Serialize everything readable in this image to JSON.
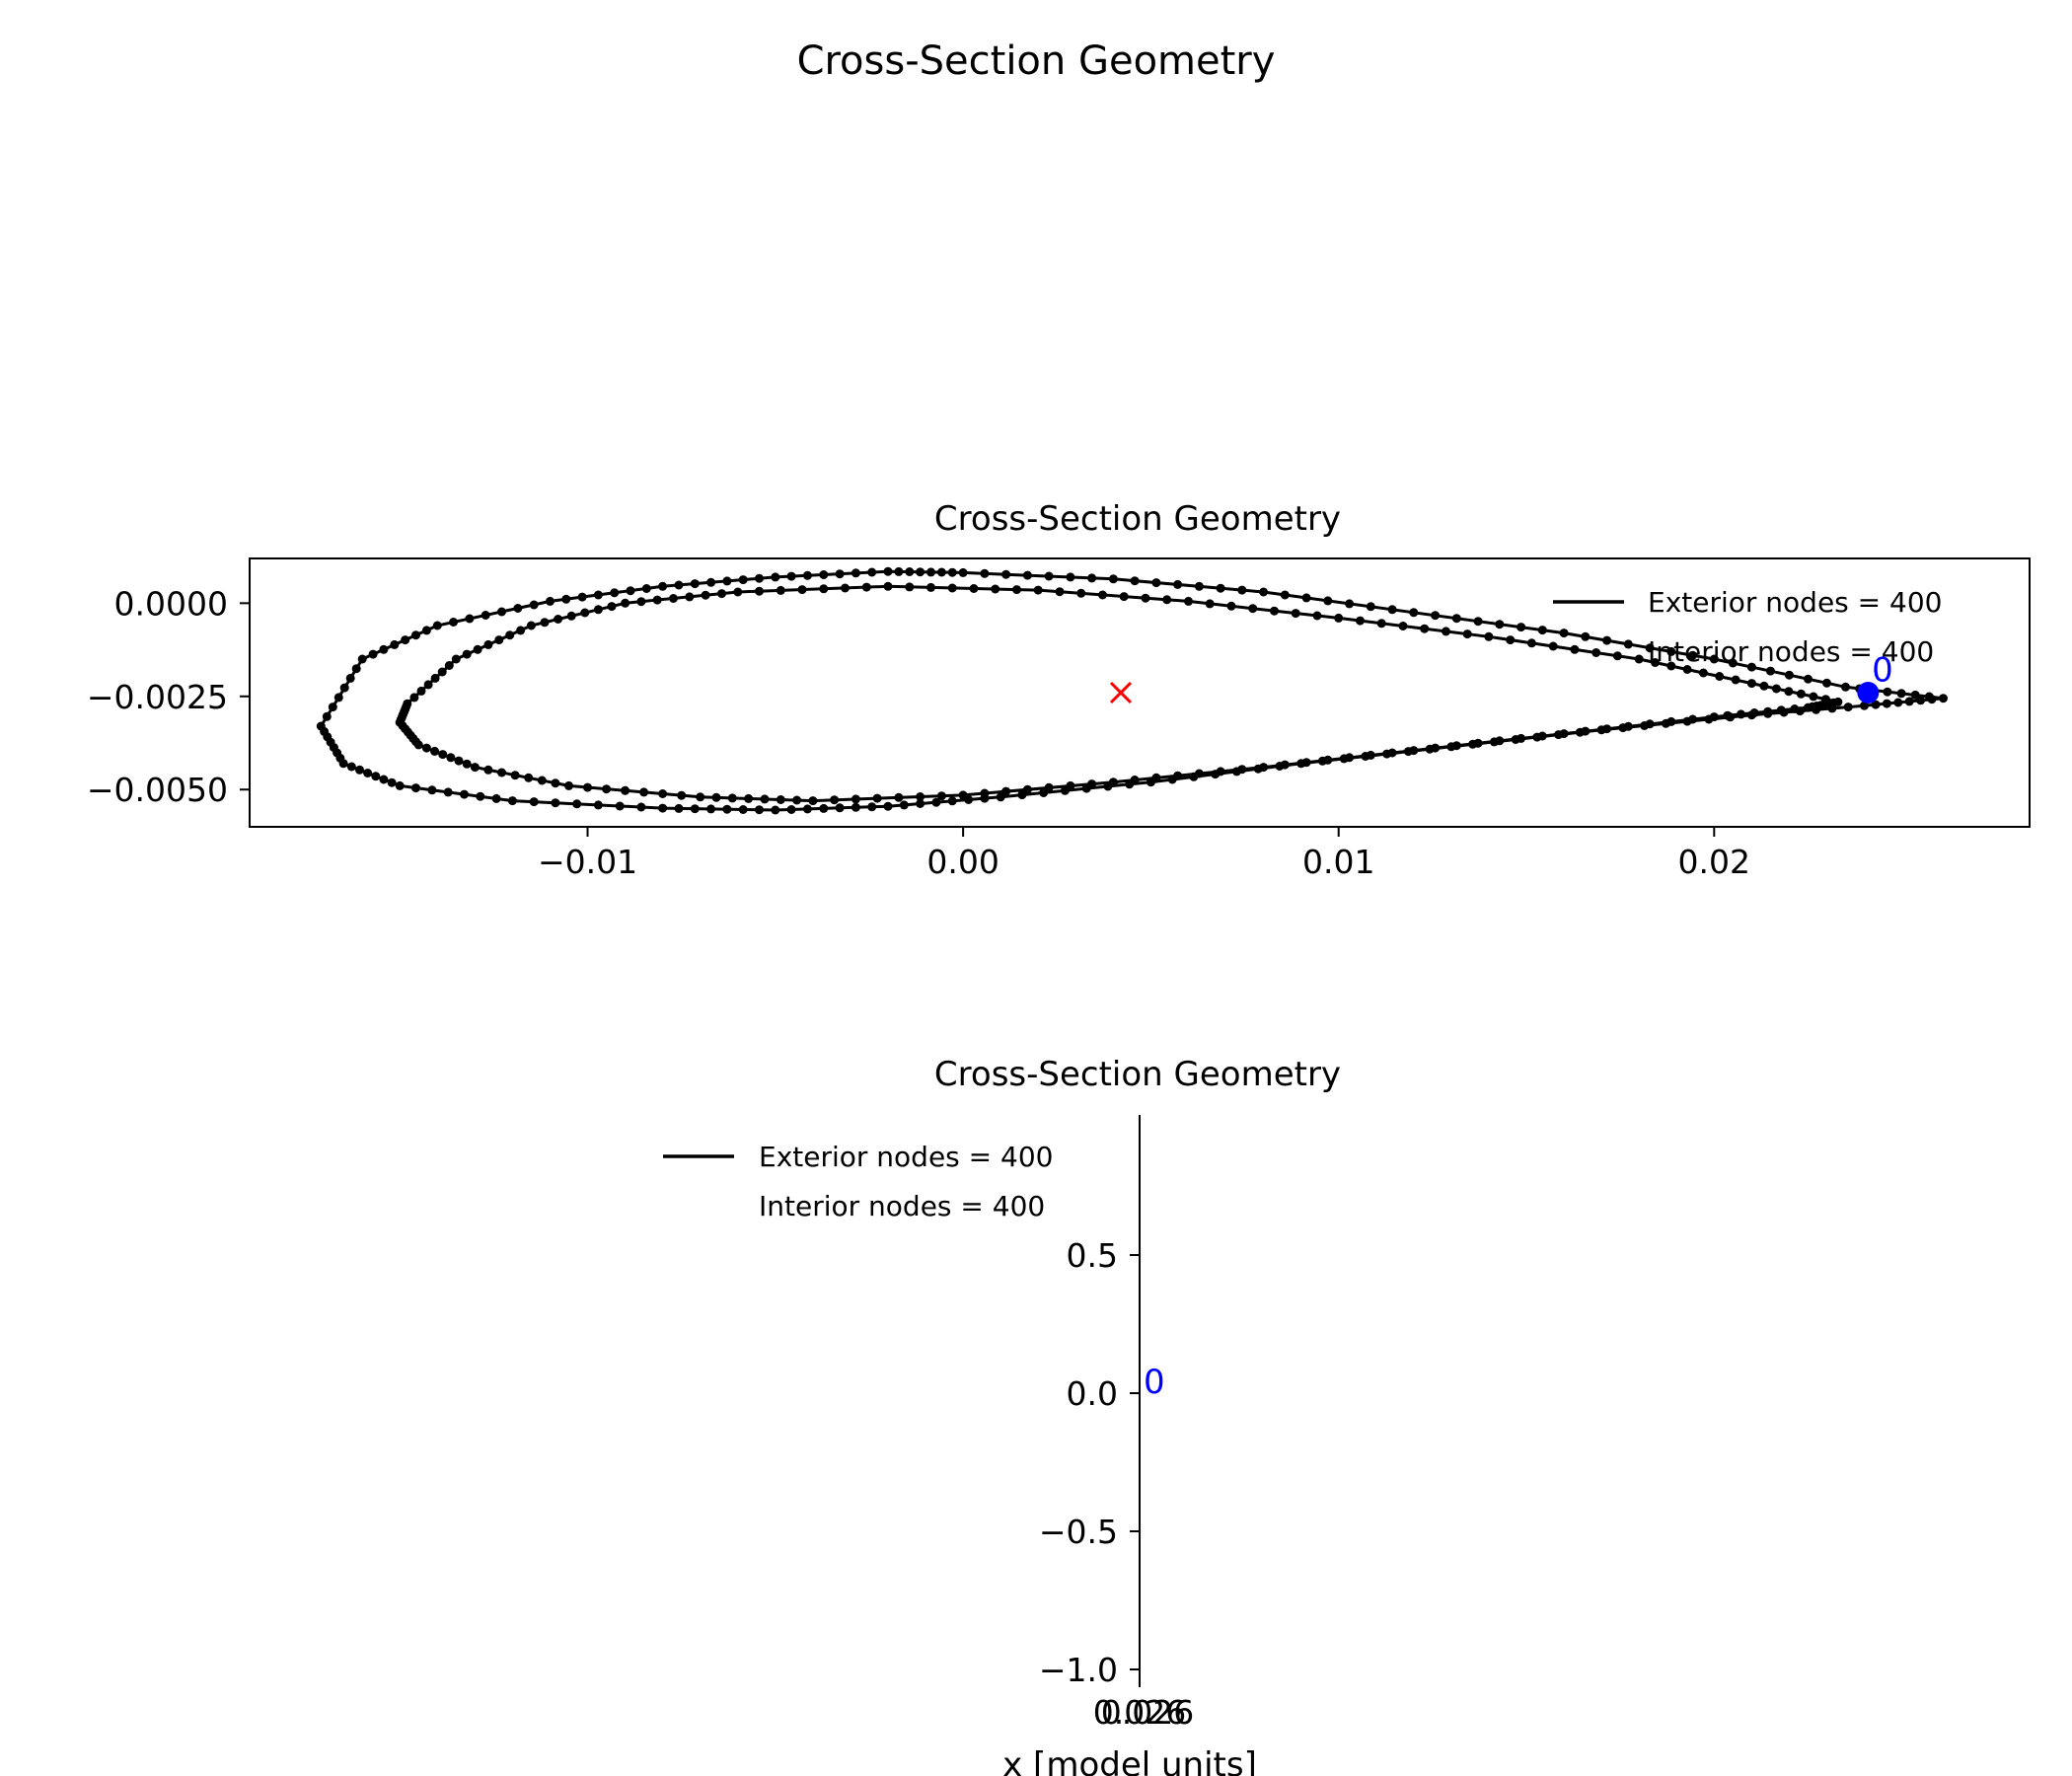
{
  "figure": {
    "suptitle": "Cross-Section Geometry"
  },
  "chart_data": [
    {
      "type": "line",
      "title": "Cross-Section Geometry",
      "xlabel": "",
      "ylabel": "",
      "xlim": [
        -0.019,
        0.0284
      ],
      "ylim": [
        -0.006,
        0.0012
      ],
      "xticks": [
        -0.01,
        0.0,
        0.01,
        0.02
      ],
      "xtick_labels": [
        "−0.01",
        "0.00",
        "0.01",
        "0.02"
      ],
      "yticks": [
        0.0,
        -0.0025,
        -0.005
      ],
      "ytick_labels": [
        "0.0000",
        "−0.0025",
        "−0.0050"
      ],
      "grid": false,
      "legend": {
        "placement": "upper-right",
        "entries": [
          "Exterior nodes = 400",
          "Interior nodes = 400"
        ]
      },
      "series": [
        {
          "name": "Exterior nodes = 400",
          "color": "#000000",
          "marker": "dot",
          "points": [
            [
              0.0261,
              -0.00255
            ],
            [
              0.0235,
              -0.00225
            ],
            [
              0.02,
              -0.0015
            ],
            [
              0.016,
              -0.0008
            ],
            [
              0.012,
              -0.00025
            ],
            [
              0.008,
              0.0003
            ],
            [
              0.004,
              0.00065
            ],
            [
              0.0,
              0.00082
            ],
            [
              -0.002,
              0.00085
            ],
            [
              -0.005,
              0.0007
            ],
            [
              -0.008,
              0.00045
            ],
            [
              -0.011,
              5e-05
            ],
            [
              -0.014,
              -0.0006
            ],
            [
              -0.016,
              -0.0015
            ],
            [
              -0.0171,
              -0.0033
            ],
            [
              -0.0165,
              -0.0043
            ],
            [
              -0.015,
              -0.0049
            ],
            [
              -0.012,
              -0.0053
            ],
            [
              -0.008,
              -0.0055
            ],
            [
              -0.005,
              -0.00555
            ],
            [
              -0.002,
              -0.00545
            ],
            [
              0.001,
              -0.0052
            ],
            [
              0.005,
              -0.0048
            ],
            [
              0.009,
              -0.0043
            ],
            [
              0.013,
              -0.00385
            ],
            [
              0.017,
              -0.0034
            ],
            [
              0.021,
              -0.003
            ],
            [
              0.024,
              -0.00275
            ],
            [
              0.0261,
              -0.00255
            ]
          ]
        },
        {
          "name": "Interior nodes = 400",
          "color": "#000000",
          "marker": "dot",
          "points": [
            [
              0.0233,
              -0.00265
            ],
            [
              0.021,
              -0.00215
            ],
            [
              0.018,
              -0.0015
            ],
            [
              0.014,
              -0.0009
            ],
            [
              0.01,
              -0.0004
            ],
            [
              0.006,
              5e-05
            ],
            [
              0.002,
              0.00035
            ],
            [
              -0.002,
              0.00045
            ],
            [
              -0.006,
              0.0003
            ],
            [
              -0.009,
              0.0
            ],
            [
              -0.0115,
              -0.0006
            ],
            [
              -0.0135,
              -0.0015
            ],
            [
              -0.0148,
              -0.0027
            ],
            [
              -0.015,
              -0.0032
            ],
            [
              -0.0145,
              -0.0038
            ],
            [
              -0.013,
              -0.0044
            ],
            [
              -0.0105,
              -0.0049
            ],
            [
              -0.007,
              -0.0052
            ],
            [
              -0.004,
              -0.0053
            ],
            [
              0.0,
              -0.00515
            ],
            [
              0.004,
              -0.0048
            ],
            [
              0.008,
              -0.0044
            ],
            [
              0.012,
              -0.00395
            ],
            [
              0.016,
              -0.0035
            ],
            [
              0.02,
              -0.00305
            ],
            [
              0.0225,
              -0.0028
            ],
            [
              0.0233,
              -0.00265
            ]
          ]
        }
      ],
      "annotations": [
        {
          "kind": "centroid-marker",
          "symbol": "×",
          "x": 0.0042,
          "y": -0.0024,
          "color": "#ff0000"
        },
        {
          "kind": "start-node",
          "symbol": "●",
          "x": 0.0241,
          "y": -0.0024,
          "color": "#0000ff"
        },
        {
          "kind": "label",
          "text": "0",
          "x": 0.0242,
          "y": -0.0021,
          "color": "#0000ff"
        }
      ]
    },
    {
      "type": "line",
      "title": "Cross-Section Geometry",
      "xlabel": "x [model units]",
      "ylabel": "",
      "xlim": [
        0.0259,
        0.0262
      ],
      "ylim": [
        -1.0,
        1.0
      ],
      "xticks": [
        0.026,
        0.026
      ],
      "xtick_labels": [
        "0.026",
        "0.026"
      ],
      "yticks": [
        0.5,
        0.0,
        -0.5,
        -1.0
      ],
      "ytick_labels": [
        "0.5",
        "0.0",
        "−0.5",
        "−1.0"
      ],
      "grid": false,
      "legend": {
        "placement": "upper-left",
        "entries": [
          "Exterior nodes = 400",
          "Interior nodes = 400"
        ]
      },
      "series": [],
      "annotations": [
        {
          "kind": "label",
          "text": "0",
          "x": 0.026,
          "y": 0.05,
          "color": "#0000ff"
        }
      ]
    }
  ]
}
